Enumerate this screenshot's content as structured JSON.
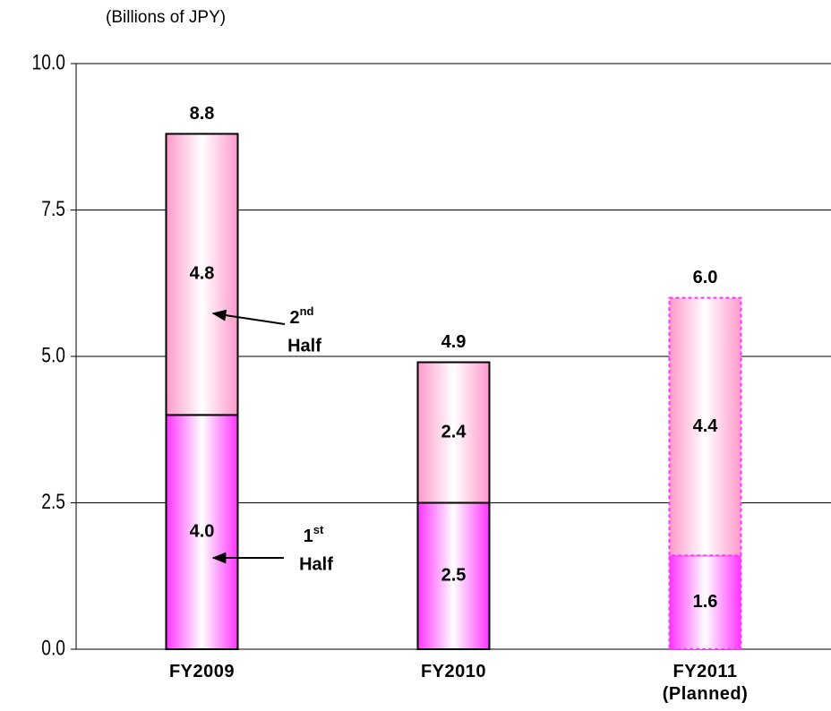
{
  "chart_data": {
    "type": "stacked_bar",
    "y_label": "(Billions of JPY)",
    "categories": [
      "FY2009",
      "FY2010",
      "FY2011\n(Planned)"
    ],
    "outline_style": [
      "solid",
      "solid",
      "dashed"
    ],
    "series": [
      {
        "name_parts": [
          "1",
          "st",
          "Half"
        ],
        "color": "#ff33ff",
        "values": [
          4.0,
          2.5,
          1.6
        ],
        "value_labels": [
          "4.0",
          "2.5",
          "1.6"
        ]
      },
      {
        "name_parts": [
          "2",
          "nd",
          "Half"
        ],
        "color": "#ff99cc",
        "values": [
          4.8,
          2.4,
          4.4
        ],
        "value_labels": [
          "4.8",
          "2.4",
          "4.4"
        ]
      }
    ],
    "totals": [
      8.8,
      4.9,
      6.0
    ],
    "total_labels": [
      "8.8",
      "4.9",
      "6.0"
    ],
    "ylim": [
      0,
      10
    ],
    "yticks": [
      {
        "value": 0,
        "label": "0.0"
      },
      2.5,
      {
        "value": 5,
        "label": "5.0"
      },
      7.5,
      {
        "value": 10,
        "label": "10.0"
      }
    ],
    "grid": true
  }
}
